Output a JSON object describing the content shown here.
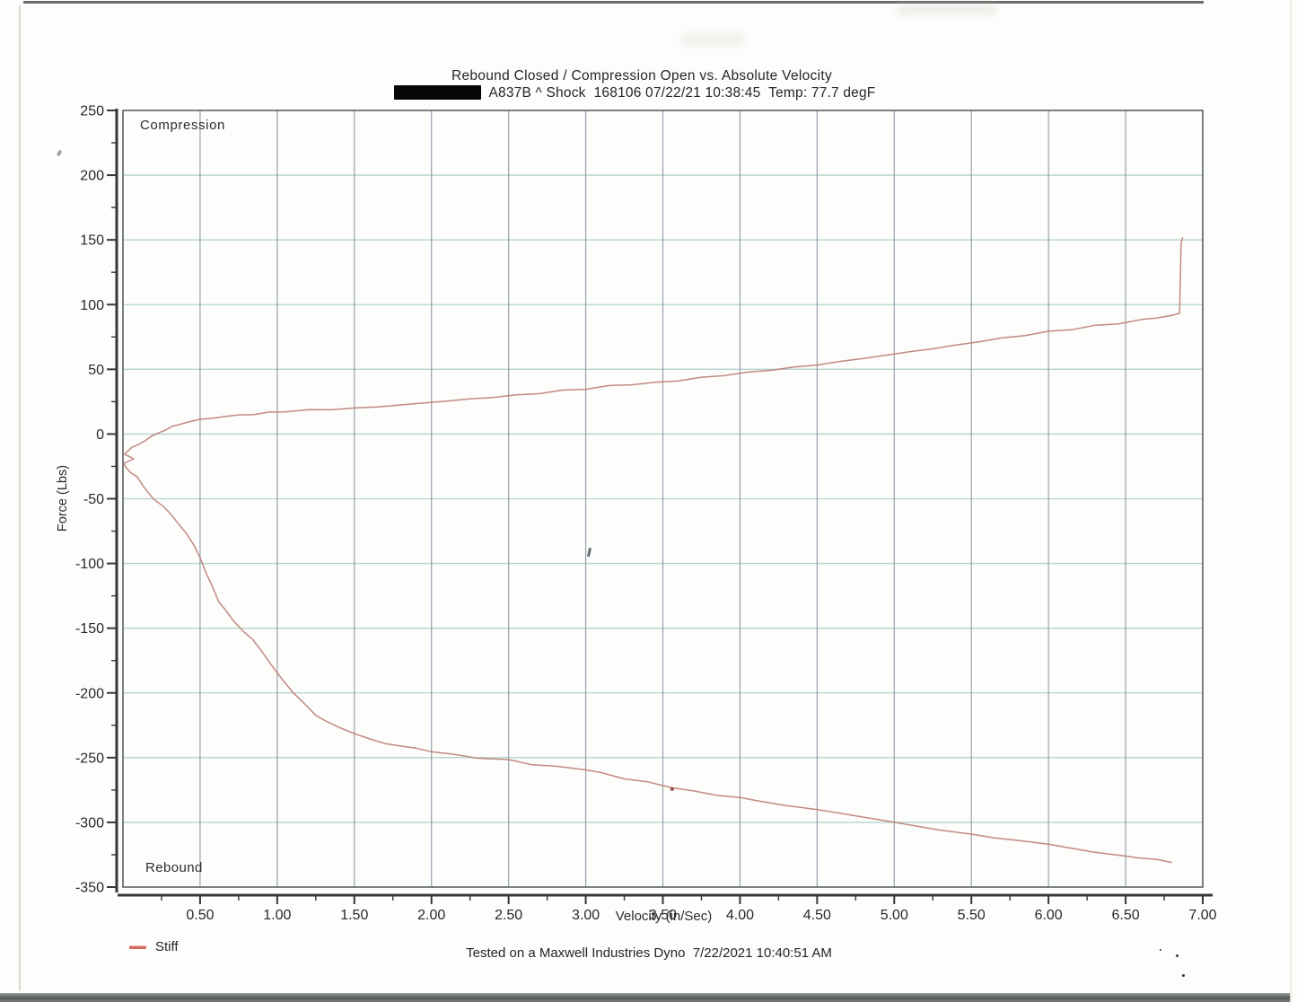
{
  "page": {
    "footer": "Tested on a Maxwell Industries Dyno  7/22/2021 10:40:51 AM"
  },
  "chart_data": {
    "type": "line",
    "title": "Rebound Closed / Compression Open vs. Absolute Velocity",
    "subtitle": "A837B ^ Shock  168106 07/22/21 10:38:45  Temp: 77.7 degF",
    "subtitle_has_redaction_bar": true,
    "xlabel": "Velocity (in/Sec)",
    "ylabel": "Force (Lbs)",
    "xlim": [
      0,
      7
    ],
    "ylim": [
      -350,
      250
    ],
    "x_major_ticks": [
      0.5,
      1.0,
      1.5,
      2.0,
      2.5,
      3.0,
      3.5,
      4.0,
      4.5,
      5.0,
      5.5,
      6.0,
      6.5,
      7.0
    ],
    "x_tick_labels": [
      "0.50",
      "1.00",
      "1.50",
      "2.00",
      "2.50",
      "3.00",
      "3.50",
      "4.00",
      "4.50",
      "5.00",
      "5.50",
      "6.00",
      "6.50",
      "7.00"
    ],
    "x_minor_step": 0.25,
    "y_major_ticks": [
      250,
      200,
      150,
      100,
      50,
      0,
      -50,
      -100,
      -150,
      -200,
      -250,
      -300,
      -350
    ],
    "y_tick_labels": [
      "250",
      "200",
      "150",
      "100",
      "50",
      "0",
      "-50",
      "-100",
      "-150",
      "-200",
      "-250",
      "-300",
      "-350"
    ],
    "y_minor_step": 25,
    "x_gridlines": [
      0.5,
      1.0,
      1.5,
      2.0,
      2.5,
      3.0,
      3.5,
      4.0,
      4.5,
      5.0,
      5.5,
      6.0,
      6.5
    ],
    "y_gridlines": [
      200,
      150,
      100,
      50,
      0,
      -50,
      -100,
      -150,
      -200,
      -250,
      -300
    ],
    "grid": true,
    "legend": {
      "position": "bottom-left",
      "items": [
        {
          "label": "Stiff",
          "color": "#d3685e"
        }
      ]
    },
    "region_labels": [
      {
        "text": "Compression",
        "position": "top-left"
      },
      {
        "text": "Rebound",
        "position": "bottom-left"
      }
    ],
    "colors": {
      "series": "#bd7f77",
      "h_grid": "#a6cbc9",
      "v_grid": "#7b8c9b",
      "axis": "#33383c",
      "text": "#26282b"
    },
    "stray_point": {
      "x": 3.56,
      "y": -275
    },
    "series": [
      {
        "name": "compression",
        "label": "Compression (open)",
        "points": [
          [
            0.01,
            -15.5
          ],
          [
            0.03,
            -13
          ],
          [
            0.06,
            -10.5
          ],
          [
            0.1,
            -8
          ],
          [
            0.14,
            -5
          ],
          [
            0.18,
            -2.5
          ],
          [
            0.22,
            0.5
          ],
          [
            0.27,
            3
          ],
          [
            0.32,
            5.5
          ],
          [
            0.38,
            8
          ],
          [
            0.44,
            10
          ],
          [
            0.5,
            11
          ],
          [
            0.58,
            12.5
          ],
          [
            0.66,
            13.5
          ],
          [
            0.75,
            14.5
          ],
          [
            0.85,
            15.5
          ],
          [
            0.95,
            16.5
          ],
          [
            1.05,
            17.5
          ],
          [
            1.2,
            18.5
          ],
          [
            1.35,
            19
          ],
          [
            1.5,
            20
          ],
          [
            1.65,
            21
          ],
          [
            1.8,
            22.5
          ],
          [
            1.95,
            24
          ],
          [
            2.1,
            25.5
          ],
          [
            2.25,
            27
          ],
          [
            2.4,
            28.5
          ],
          [
            2.55,
            30
          ],
          [
            2.7,
            31.5
          ],
          [
            2.85,
            33.5
          ],
          [
            3.0,
            35
          ],
          [
            3.15,
            37
          ],
          [
            3.3,
            38.5
          ],
          [
            3.45,
            39.5
          ],
          [
            3.6,
            41.5
          ],
          [
            3.75,
            43.5
          ],
          [
            3.9,
            45.5
          ],
          [
            4.05,
            47.5
          ],
          [
            4.2,
            49.5
          ],
          [
            4.35,
            51.5
          ],
          [
            4.5,
            53.5
          ],
          [
            4.65,
            56
          ],
          [
            4.8,
            58.5
          ],
          [
            4.95,
            61
          ],
          [
            5.1,
            63.5
          ],
          [
            5.25,
            66
          ],
          [
            5.4,
            68.5
          ],
          [
            5.55,
            71.5
          ],
          [
            5.7,
            74
          ],
          [
            5.85,
            76.5
          ],
          [
            6.0,
            79
          ],
          [
            6.15,
            81
          ],
          [
            6.3,
            83.5
          ],
          [
            6.45,
            85.5
          ],
          [
            6.6,
            88
          ],
          [
            6.7,
            90
          ],
          [
            6.8,
            91.5
          ],
          [
            6.85,
            93
          ],
          [
            6.86,
            148
          ],
          [
            6.87,
            152
          ]
        ]
      },
      {
        "name": "rebound",
        "label": "Rebound (closed)",
        "points": [
          [
            0.01,
            -15.5
          ],
          [
            0.07,
            -19
          ],
          [
            0.005,
            -23
          ],
          [
            0.02,
            -26
          ],
          [
            0.05,
            -29.5
          ],
          [
            0.09,
            -33
          ],
          [
            0.14,
            -42
          ],
          [
            0.2,
            -50
          ],
          [
            0.26,
            -56
          ],
          [
            0.31,
            -62
          ],
          [
            0.36,
            -69
          ],
          [
            0.41,
            -77
          ],
          [
            0.46,
            -86
          ],
          [
            0.5,
            -95
          ],
          [
            0.54,
            -108
          ],
          [
            0.58,
            -118
          ],
          [
            0.62,
            -129
          ],
          [
            0.67,
            -137
          ],
          [
            0.72,
            -145
          ],
          [
            0.78,
            -152
          ],
          [
            0.84,
            -159
          ],
          [
            0.9,
            -168
          ],
          [
            0.95,
            -176
          ],
          [
            1.0,
            -185
          ],
          [
            1.05,
            -192
          ],
          [
            1.1,
            -199
          ],
          [
            1.17,
            -208
          ],
          [
            1.25,
            -217
          ],
          [
            1.32,
            -222
          ],
          [
            1.4,
            -227
          ],
          [
            1.5,
            -231
          ],
          [
            1.6,
            -236
          ],
          [
            1.7,
            -239
          ],
          [
            1.8,
            -241
          ],
          [
            1.9,
            -243
          ],
          [
            2.0,
            -245
          ],
          [
            2.15,
            -248
          ],
          [
            2.3,
            -250
          ],
          [
            2.5,
            -252
          ],
          [
            2.65,
            -255
          ],
          [
            2.8,
            -257
          ],
          [
            3.0,
            -259
          ],
          [
            3.1,
            -262
          ],
          [
            3.25,
            -266
          ],
          [
            3.4,
            -269
          ],
          [
            3.56,
            -273
          ],
          [
            3.7,
            -276
          ],
          [
            3.85,
            -279
          ],
          [
            4.0,
            -281
          ],
          [
            4.15,
            -284
          ],
          [
            4.3,
            -287
          ],
          [
            4.5,
            -290
          ],
          [
            4.65,
            -293
          ],
          [
            4.8,
            -296
          ],
          [
            5.0,
            -300
          ],
          [
            5.15,
            -303
          ],
          [
            5.3,
            -306
          ],
          [
            5.5,
            -309
          ],
          [
            5.65,
            -312
          ],
          [
            5.8,
            -314
          ],
          [
            6.0,
            -317
          ],
          [
            6.15,
            -320
          ],
          [
            6.3,
            -323
          ],
          [
            6.5,
            -326
          ],
          [
            6.6,
            -327.5
          ],
          [
            6.7,
            -329
          ],
          [
            6.8,
            -331
          ]
        ]
      }
    ]
  }
}
